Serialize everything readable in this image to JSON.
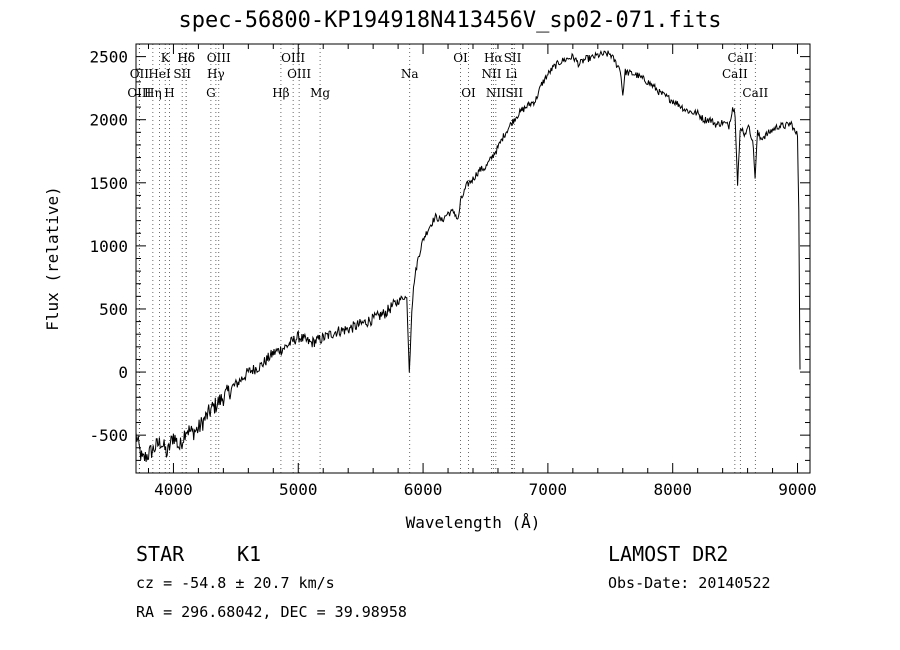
{
  "title": "spec-56800-KP194918N413456V_sp02-071.fits",
  "info": {
    "class": "STAR",
    "subclass": "K1",
    "survey": "LAMOST DR2",
    "cz": "cz = -54.8 ± 20.7 km/s",
    "obsdate": "Obs-Date: 20140522",
    "radec": "RA = 296.68042, DEC =  39.98958"
  },
  "chart_data": {
    "type": "line",
    "title": "spec-56800-KP194918N413456V_sp02-071.fits",
    "xlabel": "Wavelength (Å)",
    "ylabel": "Flux (relative)",
    "xlim": [
      3700,
      9100
    ],
    "ylim": [
      -800,
      2600
    ],
    "xticks": [
      4000,
      5000,
      6000,
      7000,
      8000,
      9000
    ],
    "xtick_labels": [
      "4000",
      "5000",
      "6000",
      "7000",
      "8000",
      "9000"
    ],
    "yticks": [
      -500,
      0,
      500,
      1000,
      1500,
      2000,
      2500
    ],
    "ytick_labels": [
      "-500",
      "0",
      "500",
      "1000",
      "1500",
      "2000",
      "2500"
    ],
    "grid": false,
    "series": [
      {
        "x": [
          3700,
          3750,
          3800,
          3850,
          3900,
          3950,
          4000,
          4050,
          4100,
          4150,
          4200,
          4300,
          4400,
          4500,
          4600,
          4700,
          4800,
          4900,
          5000,
          5100,
          5200,
          5300,
          5400,
          5500,
          5600,
          5700,
          5750,
          5800,
          5850,
          5870,
          5890,
          5910,
          5930,
          5960,
          6000,
          6050,
          6100,
          6150,
          6200,
          6250,
          6280,
          6300,
          6350,
          6400,
          6450,
          6500,
          6550,
          6600,
          6650,
          6700,
          6750,
          6800,
          6850,
          6900,
          6950,
          7000,
          7050,
          7100,
          7150,
          7200,
          7250,
          7300,
          7350,
          7400,
          7450,
          7500,
          7550,
          7580,
          7600,
          7620,
          7650,
          7700,
          7750,
          7800,
          7850,
          7900,
          7950,
          8000,
          8050,
          8100,
          8150,
          8200,
          8250,
          8300,
          8350,
          8400,
          8450,
          8480,
          8500,
          8520,
          8540,
          8560,
          8580,
          8600,
          8620,
          8640,
          8660,
          8680,
          8700,
          8750,
          8800,
          8850,
          8900,
          8950,
          8980,
          9000,
          9010,
          9020
        ],
        "y": [
          -500,
          -700,
          -650,
          -600,
          -550,
          -650,
          -500,
          -600,
          -450,
          -480,
          -450,
          -300,
          -200,
          -100,
          0,
          50,
          150,
          200,
          280,
          230,
          270,
          320,
          340,
          380,
          420,
          470,
          520,
          560,
          600,
          580,
          10,
          500,
          730,
          900,
          1050,
          1150,
          1230,
          1200,
          1260,
          1270,
          1200,
          1350,
          1480,
          1530,
          1600,
          1620,
          1700,
          1780,
          1880,
          1960,
          2030,
          2080,
          2120,
          2150,
          2280,
          2360,
          2420,
          2460,
          2480,
          2500,
          2440,
          2480,
          2490,
          2510,
          2520,
          2520,
          2440,
          2400,
          2200,
          2380,
          2370,
          2360,
          2330,
          2300,
          2260,
          2210,
          2180,
          2150,
          2120,
          2080,
          2060,
          2050,
          2000,
          2000,
          1960,
          1980,
          1950,
          2100,
          2050,
          1500,
          1900,
          1920,
          1880,
          1960,
          1900,
          1850,
          1550,
          1900,
          1850,
          1880,
          1920,
          1950,
          1950,
          1970,
          1900,
          1880,
          1300,
          20
        ]
      }
    ],
    "lines": [
      {
        "label": "Hδ",
        "wl": 4102,
        "tier": 0
      },
      {
        "label": "K",
        "wl": 3934,
        "tier": 0
      },
      {
        "label": "Hδ",
        "wl": 4102,
        "tier": 0
      },
      {
        "label": "OIII",
        "wl": 4363,
        "tier": 0
      },
      {
        "label": "OIII",
        "wl": 4959,
        "tier": 0
      },
      {
        "label": "OI",
        "wl": 6300,
        "tier": 0
      },
      {
        "label": "Hα",
        "wl": 6563,
        "tier": 0
      },
      {
        "label": "SII",
        "wl": 6717,
        "tier": 0
      },
      {
        "label": "CaII",
        "wl": 8542,
        "tier": 0
      },
      {
        "label": "OII",
        "wl": 3727,
        "tier": 1
      },
      {
        "label": "HeI",
        "wl": 3889,
        "tier": 1
      },
      {
        "label": "SII",
        "wl": 4070,
        "tier": 1
      },
      {
        "label": "Hγ",
        "wl": 4340,
        "tier": 1
      },
      {
        "label": "OIII",
        "wl": 5007,
        "tier": 1
      },
      {
        "label": "Na",
        "wl": 5893,
        "tier": 1
      },
      {
        "label": "NII",
        "wl": 6548,
        "tier": 1
      },
      {
        "label": "Li",
        "wl": 6708,
        "tier": 1
      },
      {
        "label": "CaII",
        "wl": 8498,
        "tier": 1
      },
      {
        "label": "OIII",
        "wl": 3727,
        "tier": 2
      },
      {
        "label": "Hη",
        "wl": 3835,
        "tier": 2
      },
      {
        "label": "H",
        "wl": 3968,
        "tier": 2
      },
      {
        "label": "G",
        "wl": 4300,
        "tier": 2
      },
      {
        "label": "Hβ",
        "wl": 4861,
        "tier": 2
      },
      {
        "label": "Mg",
        "wl": 5175,
        "tier": 2
      },
      {
        "label": "OI",
        "wl": 6364,
        "tier": 2
      },
      {
        "label": "NII",
        "wl": 6583,
        "tier": 2
      },
      {
        "label": "SII",
        "wl": 6731,
        "tier": 2
      },
      {
        "label": "CaII",
        "wl": 8662,
        "tier": 2
      }
    ]
  }
}
